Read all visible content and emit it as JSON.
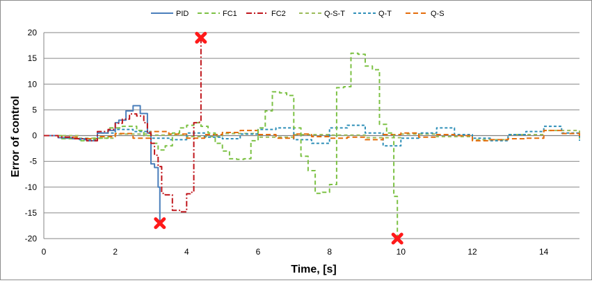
{
  "chart_data": {
    "type": "line",
    "title": "",
    "xlabel": "Time, [s]",
    "ylabel": "Error of control",
    "xlim": [
      0,
      15
    ],
    "ylim": [
      -20,
      20
    ],
    "x_ticks": [
      "0",
      "2",
      "4",
      "6",
      "8",
      "10",
      "12",
      "14"
    ],
    "y_ticks": [
      "20",
      "15",
      "10",
      "5",
      "0",
      "-5",
      "-10",
      "-15",
      "-20"
    ],
    "grid": "horizontal",
    "legend_position": "top",
    "series": [
      {
        "name": "PID",
        "color": "#4a7ebb",
        "dash": "solid",
        "x": [
          0,
          0.4,
          0.8,
          1.2,
          1.5,
          1.8,
          2.0,
          2.1,
          2.3,
          2.5,
          2.7,
          2.9,
          3.0,
          3.1,
          3.2,
          3.25,
          3.3
        ],
        "y": [
          0,
          -0.4,
          -0.6,
          -1.0,
          0.5,
          1.0,
          2.5,
          3.0,
          4.8,
          5.8,
          4.3,
          0.5,
          -5.5,
          -6.2,
          -10.0,
          -17.0,
          -17.0
        ],
        "failure_marker": {
          "x": 3.25,
          "y": -17.0
        }
      },
      {
        "name": "FC1",
        "color": "#7cc144",
        "dash": "6,4",
        "x": [
          0,
          0.5,
          1.0,
          1.4,
          1.8,
          2.2,
          2.6,
          2.8,
          3.0,
          3.2,
          3.4,
          3.6,
          3.8,
          4.0,
          4.2,
          4.4,
          4.6,
          4.8,
          5.0,
          5.2,
          5.4,
          5.6,
          5.8,
          6.0,
          6.2,
          6.4,
          6.6,
          6.8,
          7.0,
          7.2,
          7.4,
          7.6,
          7.8,
          8.0,
          8.2,
          8.4,
          8.6,
          8.8,
          9.0,
          9.2,
          9.4,
          9.6,
          9.8,
          9.9
        ],
        "y": [
          0,
          -0.6,
          -1.0,
          -0.5,
          1.5,
          1.8,
          1.0,
          0,
          -1.5,
          -2.8,
          -2.0,
          0.5,
          1.5,
          2.0,
          2.5,
          1.8,
          0.5,
          -1.5,
          -3.0,
          -4.5,
          -4.6,
          -4.5,
          -1.0,
          1.5,
          4.8,
          8.5,
          8.3,
          7.8,
          1.5,
          -4.0,
          -6.8,
          -11.2,
          -11.0,
          -9.5,
          9.3,
          9.5,
          16.0,
          15.8,
          13.5,
          12.8,
          2.2,
          0.5,
          -11.8,
          -20.0
        ],
        "failure_marker": {
          "x": 9.9,
          "y": -20.0
        }
      },
      {
        "name": "FC2",
        "color": "#c0161c",
        "dash": "8,3,2,3",
        "x": [
          0,
          0.4,
          0.8,
          1.2,
          1.5,
          1.8,
          2.0,
          2.2,
          2.4,
          2.6,
          2.8,
          2.9,
          3.0,
          3.1,
          3.2,
          3.3,
          3.4,
          3.6,
          3.8,
          4.0,
          4.1,
          4.2,
          4.3,
          4.4
        ],
        "y": [
          0,
          -0.3,
          -0.6,
          -1.0,
          0.8,
          1.2,
          2.4,
          3.2,
          4.2,
          3.8,
          2.5,
          0.5,
          -1.5,
          -3.8,
          -6.0,
          -11.2,
          -11.5,
          -14.5,
          -14.8,
          -11.3,
          -11.0,
          2.5,
          2.6,
          19.0
        ],
        "failure_marker": {
          "x": 4.4,
          "y": 19.0
        }
      },
      {
        "name": "Q-S-T",
        "color": "#9bbb59",
        "dash": "5,4",
        "x": [
          0,
          1.0,
          2.0,
          3.0,
          4.0,
          5.0,
          6.0,
          7.0,
          8.0,
          9.0,
          10.0,
          11.0,
          12.0,
          13.0,
          14.0,
          15.0
        ],
        "y": [
          0,
          -0.5,
          0.3,
          0.1,
          -0.2,
          0.4,
          -0.3,
          0.2,
          0.1,
          -0.4,
          0.3,
          -0.2,
          -0.8,
          0.2,
          1.0,
          -0.6
        ]
      },
      {
        "name": "Q-T",
        "color": "#2e8fb8",
        "dash": "4,3",
        "x": [
          0,
          0.5,
          1.0,
          1.5,
          2.0,
          2.5,
          3.0,
          3.5,
          4.0,
          4.5,
          5.0,
          5.5,
          6.0,
          6.5,
          7.0,
          7.5,
          8.0,
          8.5,
          9.0,
          9.5,
          10.0,
          10.5,
          11.0,
          11.5,
          12.0,
          12.5,
          13.0,
          13.5,
          14.0,
          14.5,
          15.0
        ],
        "y": [
          0,
          -0.5,
          -0.8,
          0.5,
          1.2,
          0.8,
          -0.5,
          -0.8,
          0.5,
          -0.3,
          -0.6,
          0.3,
          1.2,
          1.5,
          -0.8,
          -1.5,
          1.5,
          2.0,
          0.5,
          -2.0,
          -0.5,
          0.5,
          1.5,
          0.2,
          -0.5,
          -1.0,
          0.2,
          0.8,
          1.8,
          0.5,
          -1.0
        ]
      },
      {
        "name": "Q-S",
        "color": "#e46c0a",
        "dash": "7,4",
        "x": [
          0,
          0.5,
          1.0,
          1.5,
          2.0,
          2.5,
          3.0,
          3.5,
          4.0,
          4.5,
          5.0,
          5.5,
          6.0,
          6.5,
          7.0,
          7.5,
          8.0,
          8.5,
          9.0,
          9.5,
          10.0,
          10.5,
          11.0,
          11.5,
          12.0,
          12.5,
          13.0,
          13.5,
          14.0,
          14.5,
          15.0
        ],
        "y": [
          0,
          -0.3,
          -0.6,
          -0.2,
          0.4,
          -0.5,
          0.8,
          0.3,
          -0.5,
          0.2,
          0.6,
          1.0,
          0.2,
          -0.5,
          0.3,
          -0.2,
          -0.5,
          -0.3,
          -0.8,
          0.2,
          0.5,
          -0.3,
          0.2,
          0.0,
          -1.0,
          -0.8,
          -0.6,
          -0.5,
          1.0,
          0.4,
          -0.5
        ]
      }
    ]
  }
}
